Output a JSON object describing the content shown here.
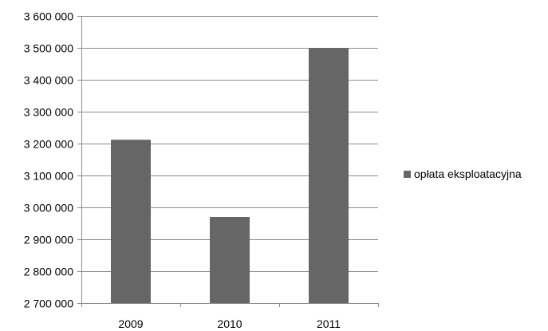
{
  "chart_data": {
    "type": "bar",
    "categories": [
      "2009",
      "2010",
      "2011"
    ],
    "series": [
      {
        "name": "opłata eksploatacyjna",
        "values": [
          3212000,
          2970000,
          3500000
        ],
        "color": "#666666"
      }
    ],
    "ylim": [
      2700000,
      3600000
    ],
    "yticks": [
      2700000,
      2800000,
      2900000,
      3000000,
      3100000,
      3200000,
      3300000,
      3400000,
      3500000,
      3600000
    ],
    "ytick_labels": [
      "2 700 000",
      "2 800 000",
      "2 900 000",
      "3 000 000",
      "3 100 000",
      "3 200 000",
      "3 300 000",
      "3 400 000",
      "3 500 000",
      "3 600 000"
    ],
    "grid": true,
    "legend_position": "right",
    "gridline_color": "#8c8c8c"
  }
}
